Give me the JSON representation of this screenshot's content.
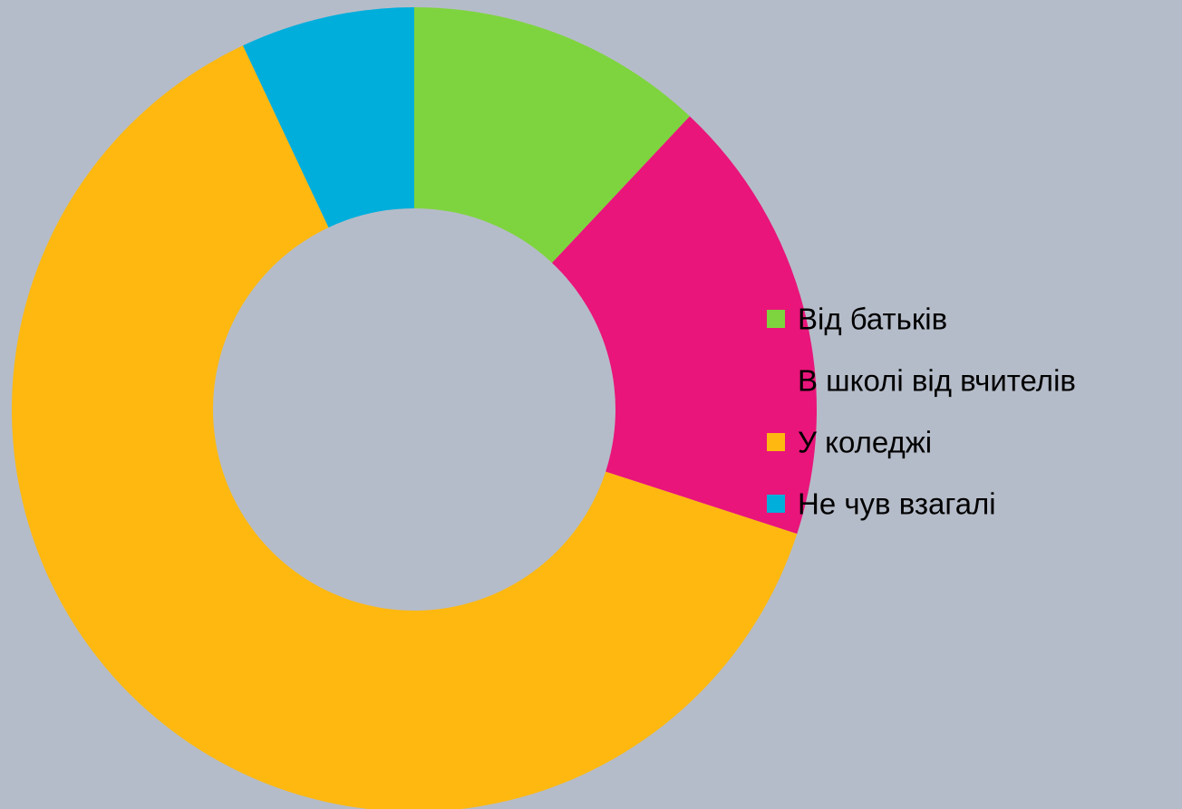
{
  "chart_data": {
    "type": "pie",
    "variant": "donut",
    "categories": [
      "Від батьків",
      "В школі від вчителів",
      "У коледжі",
      "Не чув взагалі"
    ],
    "values": [
      12,
      18,
      63,
      7
    ],
    "colors": [
      "#7ed43e",
      "#e9157a",
      "#feb80f",
      "#00aedc"
    ],
    "title": "",
    "legend_position": "right"
  }
}
